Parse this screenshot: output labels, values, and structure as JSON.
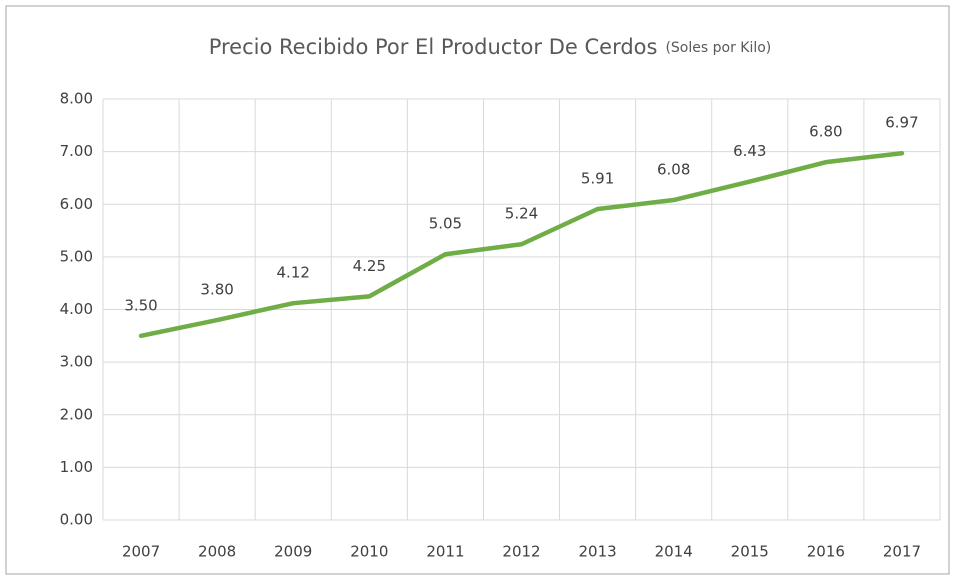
{
  "chart_data": {
    "type": "line",
    "title": "Precio Recibido Por El Productor  De Cerdos",
    "subtitle": "(Soles por Kilo)",
    "categories": [
      "2007",
      "2008",
      "2009",
      "2010",
      "2011",
      "2012",
      "2013",
      "2014",
      "2015",
      "2016",
      "2017"
    ],
    "series": [
      {
        "color": "#70ad47",
        "values": [
          3.5,
          3.8,
          4.12,
          4.25,
          5.05,
          5.24,
          5.91,
          6.08,
          6.43,
          6.8,
          6.97
        ],
        "value_labels": [
          "3.50",
          "3.80",
          "4.12",
          "4.25",
          "5.05",
          "5.24",
          "5.91",
          "6.08",
          "6.43",
          "6.80",
          "6.97"
        ]
      }
    ],
    "ylim": [
      0,
      8
    ],
    "yticks": [
      {
        "value": 0,
        "label": "0.00"
      },
      {
        "value": 1,
        "label": "1.00"
      },
      {
        "value": 2,
        "label": "2.00"
      },
      {
        "value": 3,
        "label": "3.00"
      },
      {
        "value": 4,
        "label": "4.00"
      },
      {
        "value": 5,
        "label": "5.00"
      },
      {
        "value": 6,
        "label": "6.00"
      },
      {
        "value": 7,
        "label": "7.00"
      },
      {
        "value": 8,
        "label": "8.00"
      }
    ],
    "grid": true
  }
}
